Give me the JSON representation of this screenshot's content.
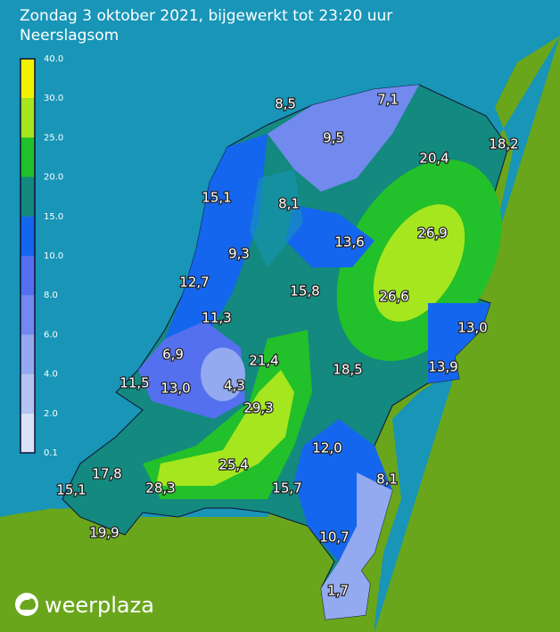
{
  "header": {
    "title": "Zondag 3 oktober 2021, bijgewerkt tot 23:20 uur",
    "subtitle": "Neerslagsom"
  },
  "legend": {
    "labels": [
      "40.0",
      "30.0",
      "25.0",
      "20.0",
      "15.0",
      "10.0",
      "8.0",
      "6.0",
      "4.0",
      "2.0",
      "0.1"
    ],
    "colors": [
      "#f2f200",
      "#a6e61e",
      "#22c02a",
      "#13897f",
      "#1566ee",
      "#5470ee",
      "#7289ee",
      "#93a9f0",
      "#b5c4f2",
      "#dbe2f8"
    ]
  },
  "map": {
    "labels": [
      "8,5",
      "7,1",
      "9,5",
      "18,2",
      "20,4",
      "15,1",
      "8,1",
      "26,9",
      "13,6",
      "9,3",
      "12,7",
      "15,8",
      "26,6",
      "11,3",
      "13,0",
      "6,9",
      "21,4",
      "18,5",
      "13,9",
      "11,5",
      "13,0",
      "4,3",
      "29,3",
      "12,0",
      "8,1",
      "25,4",
      "17,8",
      "15,1",
      "28,3",
      "15,7",
      "19,9",
      "10,7",
      "1,7"
    ]
  },
  "footer": {
    "brand": "weerplaza"
  }
}
